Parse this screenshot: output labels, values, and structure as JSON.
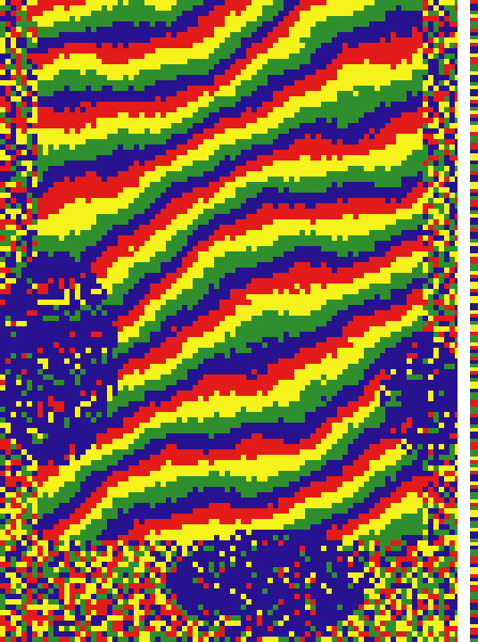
{
  "image": {
    "kind": "phase-contrast texture map",
    "palette": {
      "yellow": "#f6f21c",
      "green": "#2f8f2f",
      "red": "#e31b1b",
      "navy": "#27128f"
    },
    "band_order": [
      "yellow",
      "green",
      "navy",
      "red"
    ],
    "edge_strip_order": [
      "yellow",
      "red",
      "navy",
      "green"
    ]
  }
}
